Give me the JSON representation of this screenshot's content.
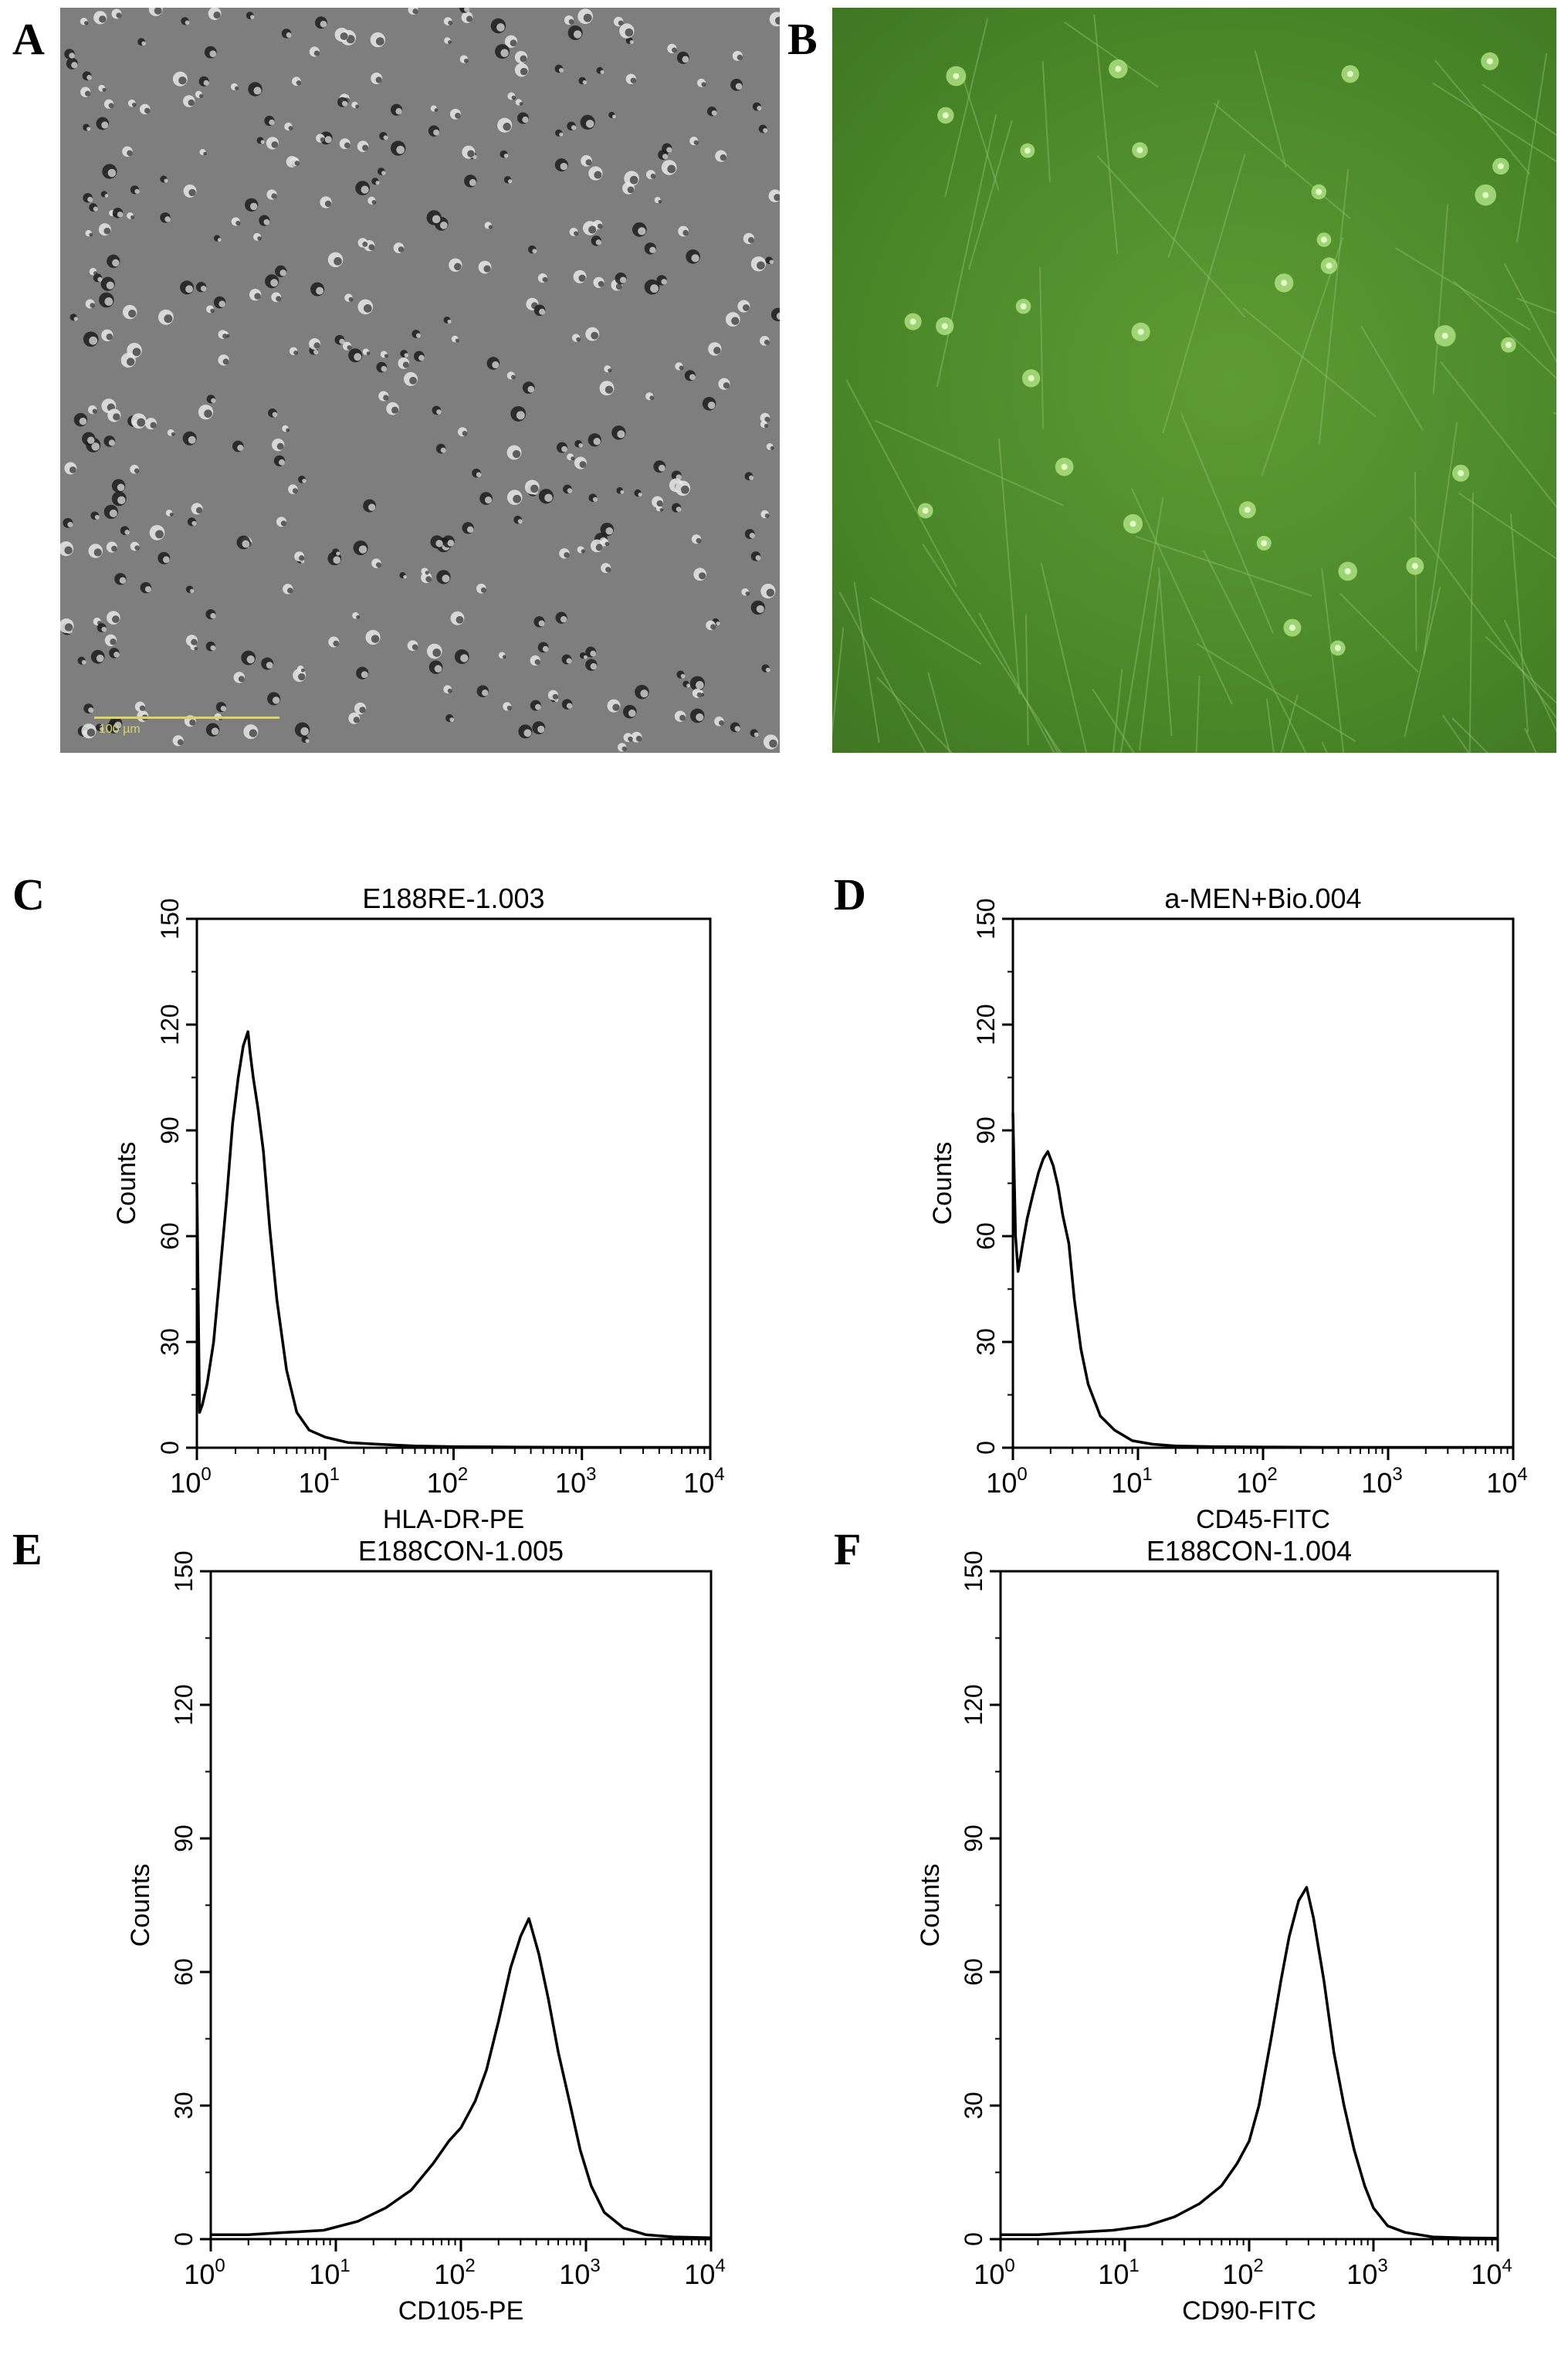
{
  "figure": {
    "panels": [
      {
        "letter": "A",
        "kind": "micrograph",
        "scale_bar_label": "100 µm"
      },
      {
        "letter": "B",
        "kind": "micrograph"
      }
    ]
  },
  "chart_data": [
    {
      "panel": "C",
      "type": "line",
      "title": "E188RE-1.003",
      "xlabel": "HLA-DR-PE",
      "ylabel": "Counts",
      "xscale": "log",
      "xlim": [
        1,
        10000
      ],
      "ylim": [
        0,
        150
      ],
      "yticks": [
        0,
        30,
        60,
        90,
        120,
        150
      ],
      "xticks": [
        {
          "base": "10",
          "exp": "0"
        },
        {
          "base": "10",
          "exp": "1"
        },
        {
          "base": "10",
          "exp": "2"
        },
        {
          "base": "10",
          "exp": "3"
        },
        {
          "base": "10",
          "exp": "4"
        }
      ],
      "series": [
        {
          "x": [
            1.0,
            1.05,
            1.1,
            1.2,
            1.35,
            1.5,
            1.7,
            1.9,
            2.1,
            2.3,
            2.5,
            2.6,
            2.75,
            3.0,
            3.3,
            3.7,
            4.2,
            5.0,
            6.0,
            7.5,
            10,
            15,
            25,
            50,
            100,
            300,
            1000,
            3000,
            10000
          ],
          "y": [
            75,
            10,
            12,
            18,
            30,
            48,
            70,
            92,
            105,
            114,
            118,
            112,
            105,
            96,
            84,
            62,
            42,
            22,
            10,
            5,
            3,
            1.5,
            1,
            0.5,
            0.3,
            0.2,
            0.1,
            0.1,
            0.1
          ]
        }
      ]
    },
    {
      "panel": "D",
      "type": "line",
      "title": "a-MEN+Bio.004",
      "xlabel": "CD45-FITC",
      "ylabel": "Counts",
      "xscale": "log",
      "xlim": [
        1,
        10000
      ],
      "ylim": [
        0,
        150
      ],
      "yticks": [
        0,
        30,
        60,
        90,
        120,
        150
      ],
      "xticks": [
        {
          "base": "10",
          "exp": "0"
        },
        {
          "base": "10",
          "exp": "1"
        },
        {
          "base": "10",
          "exp": "2"
        },
        {
          "base": "10",
          "exp": "3"
        },
        {
          "base": "10",
          "exp": "4"
        }
      ],
      "series": [
        {
          "x": [
            1.0,
            1.05,
            1.1,
            1.2,
            1.3,
            1.45,
            1.6,
            1.75,
            1.9,
            2.1,
            2.3,
            2.5,
            2.8,
            3.1,
            3.5,
            4.0,
            5.0,
            6.5,
            9,
            13,
            20,
            40,
            100,
            300,
            1000,
            3000,
            10000
          ],
          "y": [
            95,
            60,
            50,
            58,
            65,
            72,
            78,
            82,
            84,
            80,
            74,
            66,
            58,
            42,
            28,
            18,
            9,
            5,
            2,
            1,
            0.5,
            0.3,
            0.2,
            0.1,
            0.1,
            0.1,
            0.1
          ]
        }
      ]
    },
    {
      "panel": "E",
      "type": "line",
      "title": "E188CON-1.005",
      "xlabel": "CD105-PE",
      "ylabel": "Counts",
      "xscale": "log",
      "xlim": [
        1,
        10000
      ],
      "ylim": [
        0,
        150
      ],
      "yticks": [
        0,
        30,
        60,
        90,
        120,
        150
      ],
      "xticks": [
        {
          "base": "10",
          "exp": "0"
        },
        {
          "base": "10",
          "exp": "1"
        },
        {
          "base": "10",
          "exp": "2"
        },
        {
          "base": "10",
          "exp": "3"
        },
        {
          "base": "10",
          "exp": "4"
        }
      ],
      "series": [
        {
          "x": [
            1,
            2,
            4,
            8,
            15,
            25,
            40,
            60,
            80,
            100,
            130,
            160,
            200,
            250,
            300,
            350,
            420,
            500,
            600,
            750,
            900,
            1100,
            1400,
            2000,
            3000,
            5000,
            10000
          ],
          "y": [
            1,
            1,
            1.5,
            2,
            4,
            7,
            11,
            17,
            22,
            25,
            31,
            38,
            49,
            61,
            68,
            72,
            64,
            54,
            42,
            30,
            20,
            12,
            6,
            2.5,
            1,
            0.5,
            0.3
          ]
        }
      ]
    },
    {
      "panel": "F",
      "type": "line",
      "title": "E188CON-1.004",
      "xlabel": "CD90-FITC",
      "ylabel": "Counts",
      "xscale": "log",
      "xlim": [
        1,
        10000
      ],
      "ylim": [
        0,
        150
      ],
      "yticks": [
        0,
        30,
        60,
        90,
        120,
        150
      ],
      "xticks": [
        {
          "base": "10",
          "exp": "0"
        },
        {
          "base": "10",
          "exp": "1"
        },
        {
          "base": "10",
          "exp": "2"
        },
        {
          "base": "10",
          "exp": "3"
        },
        {
          "base": "10",
          "exp": "4"
        }
      ],
      "series": [
        {
          "x": [
            1,
            2,
            4,
            8,
            15,
            25,
            40,
            60,
            80,
            100,
            120,
            150,
            180,
            210,
            250,
            290,
            330,
            400,
            480,
            580,
            700,
            850,
            1000,
            1300,
            1800,
            3000,
            5000,
            10000
          ],
          "y": [
            1,
            1,
            1.5,
            2,
            3,
            5,
            8,
            12,
            17,
            22,
            30,
            45,
            58,
            68,
            76,
            79,
            72,
            58,
            42,
            30,
            20,
            12,
            7,
            3,
            1.5,
            0.5,
            0.3,
            0.2
          ]
        }
      ]
    }
  ]
}
